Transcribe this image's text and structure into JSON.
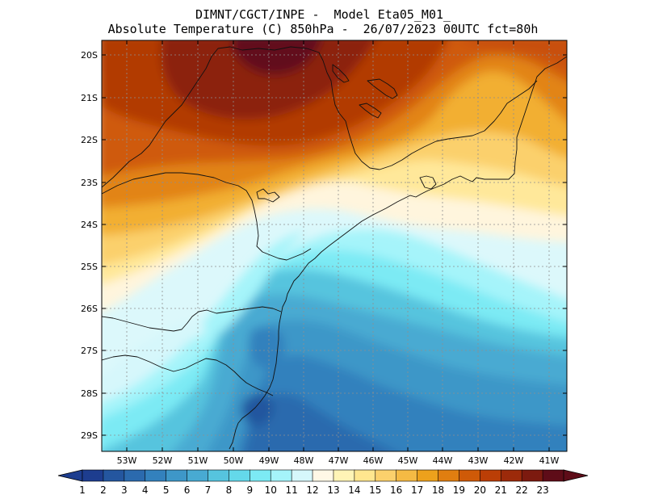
{
  "title": {
    "line1": "DIMNT/CGCT/INPE -  Model Eta05_M01_",
    "line2": "Absolute Temperature (C) 850hPa -  26/07/2023 00UTC fct=80h"
  },
  "axes": {
    "lat_labels": [
      "20S",
      "21S",
      "22S",
      "23S",
      "24S",
      "25S",
      "26S",
      "27S",
      "28S",
      "29S"
    ],
    "lon_labels": [
      "53W",
      "52W",
      "51W",
      "50W",
      "49W",
      "48W",
      "47W",
      "46W",
      "45W",
      "44W",
      "43W",
      "42W",
      "41W"
    ]
  },
  "colorbar": {
    "labels": [
      "1",
      "2",
      "3",
      "4",
      "5",
      "6",
      "7",
      "8",
      "9",
      "10",
      "11",
      "12",
      "13",
      "14",
      "15",
      "16",
      "17",
      "18",
      "19",
      "20",
      "21",
      "22",
      "23"
    ],
    "colors": [
      "#1d3d8f",
      "#24569f",
      "#2b6aae",
      "#3381bd",
      "#3e97c8",
      "#48aad2",
      "#56c4de",
      "#64d8ea",
      "#7ceaf4",
      "#a5f4fa",
      "#d6f7fb",
      "#fff8e6",
      "#fff4b6",
      "#ffe68f",
      "#fbd06c",
      "#f5ba44",
      "#eda11c",
      "#e07e10",
      "#cf5a08",
      "#bb3e06",
      "#9c2a0a",
      "#7c1a0f",
      "#5e0c18"
    ],
    "under_color": "#1d3d8f",
    "over_color": "#5e0c18"
  }
}
